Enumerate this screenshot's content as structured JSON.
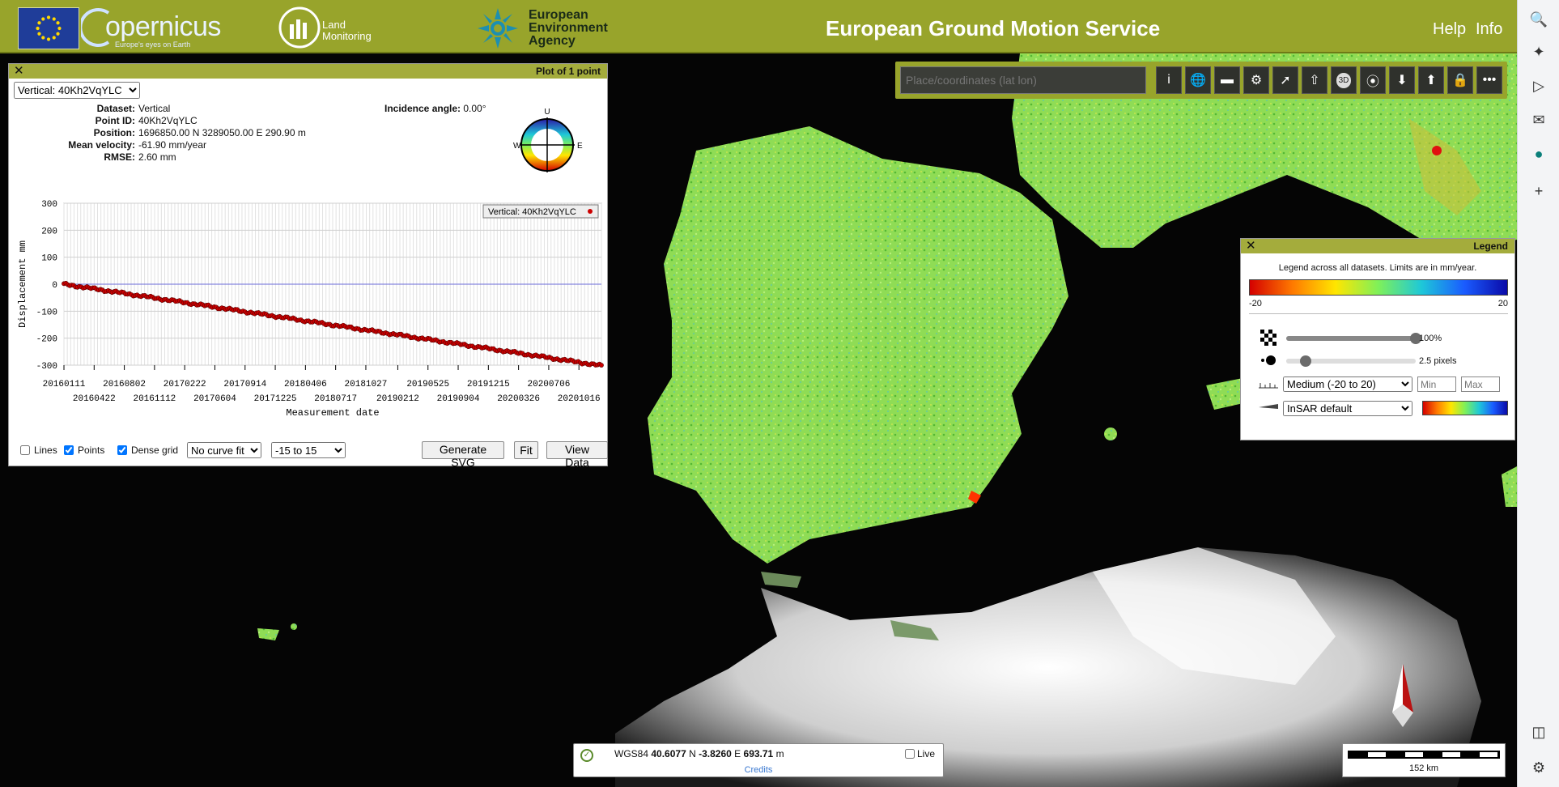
{
  "header": {
    "copernicus_word": "opernicus",
    "copernicus_tagline": "Europe's eyes on Earth",
    "land_monitoring_line1": "Land",
    "land_monitoring_line2": "Monitoring",
    "eea_line1": "European",
    "eea_line2": "Environment",
    "eea_line3": "Agency",
    "title": "European Ground Motion Service",
    "help_label": "Help",
    "info_label": "Info"
  },
  "plot_panel": {
    "title": "Plot of 1 point",
    "dataset_select": "Vertical: 40Kh2VqYLC",
    "info": [
      {
        "key": "Dataset:",
        "value": "Vertical"
      },
      {
        "key": "Point ID:",
        "value": "40Kh2VqYLC"
      },
      {
        "key": "Position:",
        "value": "1696850.00 N 3289050.00 E 290.90 m"
      },
      {
        "key": "Mean velocity:",
        "value": "-61.90 mm/year"
      },
      {
        "key": "RMSE:",
        "value": "2.60 mm"
      }
    ],
    "incidence_label": "Incidence angle:",
    "incidence_value": "0.00°",
    "compass": {
      "u": "U",
      "w": "W",
      "e": "E"
    },
    "controls": {
      "lines_label": "Lines",
      "lines_checked": false,
      "points_label": "Points",
      "points_checked": true,
      "dense_grid_label": "Dense grid",
      "dense_grid_checked": true,
      "curve_fit": "No curve fit",
      "range": "-15 to 15",
      "generate_svg": "Generate SVG",
      "fit": "Fit",
      "view_data": "View Data"
    }
  },
  "chart_data": {
    "type": "scatter",
    "xlabel": "Measurement date",
    "ylabel": "Displacement mm",
    "ylim": [
      -300,
      300
    ],
    "yticks": [
      300,
      200,
      100,
      0,
      -100,
      -200,
      -300
    ],
    "xticks_top": [
      "20160111",
      "20160802",
      "20170222",
      "20170914",
      "20180406",
      "20181027",
      "20190525",
      "20191215",
      "20200706"
    ],
    "xticks_bottom": [
      "20160422",
      "20161112",
      "20170604",
      "20171225",
      "20180717",
      "20190212",
      "20190904",
      "20200326",
      "20201016"
    ],
    "xlim": [
      "2016-01-11",
      "2020-12-31"
    ],
    "grid": true,
    "legend_position": "top-right",
    "series": [
      {
        "name": "Vertical: 40Kh2VqYLC",
        "color": "#cc0000",
        "x_start": "2016-01-11",
        "x_end": "2020-12-31",
        "y_start": 0,
        "y_end": -302
      }
    ],
    "reference_line": 0
  },
  "toolbar": {
    "search_placeholder": "Place/coordinates (lat lon)",
    "buttons": [
      "info-icon",
      "globe-icon",
      "ruler-icon",
      "settings-icon",
      "compass-icon",
      "share-icon",
      "3d-icon",
      "polygon-icon",
      "download-icon",
      "upload-icon",
      "lock-icon",
      "more-icon"
    ],
    "threed_label": "3D"
  },
  "legend": {
    "title": "Legend",
    "note": "Legend across all datasets. Limits are in mm/year.",
    "min_label": "-20",
    "max_label": "20",
    "opacity_value": 100,
    "opacity_label": "100%",
    "point_size_value": 2.5,
    "point_size_label": "2.5 pixels",
    "range_select": "Medium (-20 to 20)",
    "min_placeholder": "Min",
    "max_placeholder": "Max",
    "palette_select": "InSAR default"
  },
  "coords": {
    "text_prefix": "WGS84",
    "lat": "40.6077",
    "lat_suffix": "N",
    "lon": "-3.8260",
    "lon_suffix": "E",
    "alt": "693.71",
    "alt_suffix": "m",
    "live_label": "Live",
    "credits": "Credits"
  },
  "scale": {
    "label": "152 km"
  },
  "rail": {
    "buttons": [
      "search-icon",
      "sparkle-icon",
      "play-icon",
      "outlook-icon",
      "sharepoint-icon",
      "plus-icon",
      "sidebar-icon",
      "settings-icon"
    ]
  }
}
